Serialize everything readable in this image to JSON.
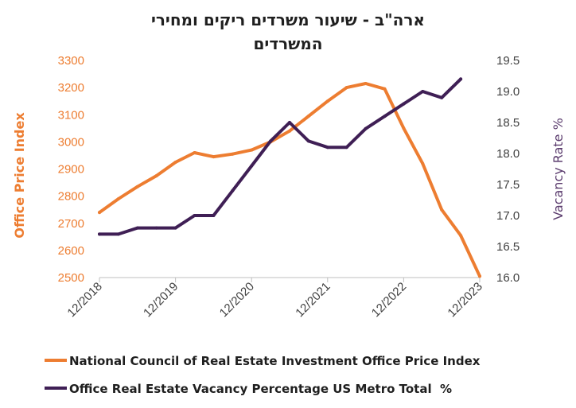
{
  "chart_data": {
    "type": "line",
    "title": "ארה\"ב - שיעור משרדים ריקים ומחירי",
    "title_line2": "המשרדים",
    "x_tick_labels": [
      "12/2018",
      "12/2019",
      "12/2020",
      "12/2021",
      "12/2022",
      "12/2023"
    ],
    "x_range": [
      2018.917,
      2023.917
    ],
    "y_left": {
      "label": "Office Price Index",
      "range": [
        2500,
        3300
      ],
      "ticks": [
        2500,
        2600,
        2700,
        2800,
        2900,
        3000,
        3100,
        3200,
        3300
      ],
      "color": "#ED7D31"
    },
    "y_right": {
      "label": "Vacancy Rate %",
      "range": [
        16.0,
        19.5
      ],
      "ticks": [
        "16.0",
        "16.5",
        "17.0",
        "17.5",
        "18.0",
        "18.5",
        "19.0",
        "19.5"
      ],
      "color": "#5B3C6E"
    },
    "grid": false,
    "legend_position": "bottom",
    "series": [
      {
        "name": "National Council of Real Estate Investment Office Price Index",
        "axis": "left",
        "color": "#ED7D31",
        "x": [
          2018.917,
          2019.167,
          2019.417,
          2019.667,
          2019.917,
          2020.167,
          2020.417,
          2020.667,
          2020.917,
          2021.167,
          2021.417,
          2021.667,
          2021.917,
          2022.167,
          2022.417,
          2022.667,
          2022.917,
          2023.167,
          2023.417,
          2023.667,
          2023.917
        ],
        "values": [
          2740,
          2790,
          2835,
          2875,
          2925,
          2960,
          2945,
          2955,
          2970,
          3000,
          3040,
          3095,
          3150,
          3200,
          3215,
          3195,
          3050,
          2920,
          2750,
          2655,
          2505
        ]
      },
      {
        "name": "Office Real Estate Vacancy Percentage US Metro Total  %",
        "axis": "right",
        "color": "#3F1F55",
        "x": [
          2018.917,
          2019.167,
          2019.417,
          2019.667,
          2019.917,
          2020.167,
          2020.417,
          2020.667,
          2020.917,
          2021.167,
          2021.417,
          2021.667,
          2021.917,
          2022.167,
          2022.417,
          2022.667,
          2022.917,
          2023.167,
          2023.417,
          2023.667
        ],
        "values": [
          16.7,
          16.7,
          16.8,
          16.8,
          16.8,
          17.0,
          17.0,
          17.4,
          17.8,
          18.2,
          18.5,
          18.2,
          18.1,
          18.1,
          18.4,
          18.6,
          18.8,
          19.0,
          18.9,
          19.2
        ]
      }
    ]
  }
}
